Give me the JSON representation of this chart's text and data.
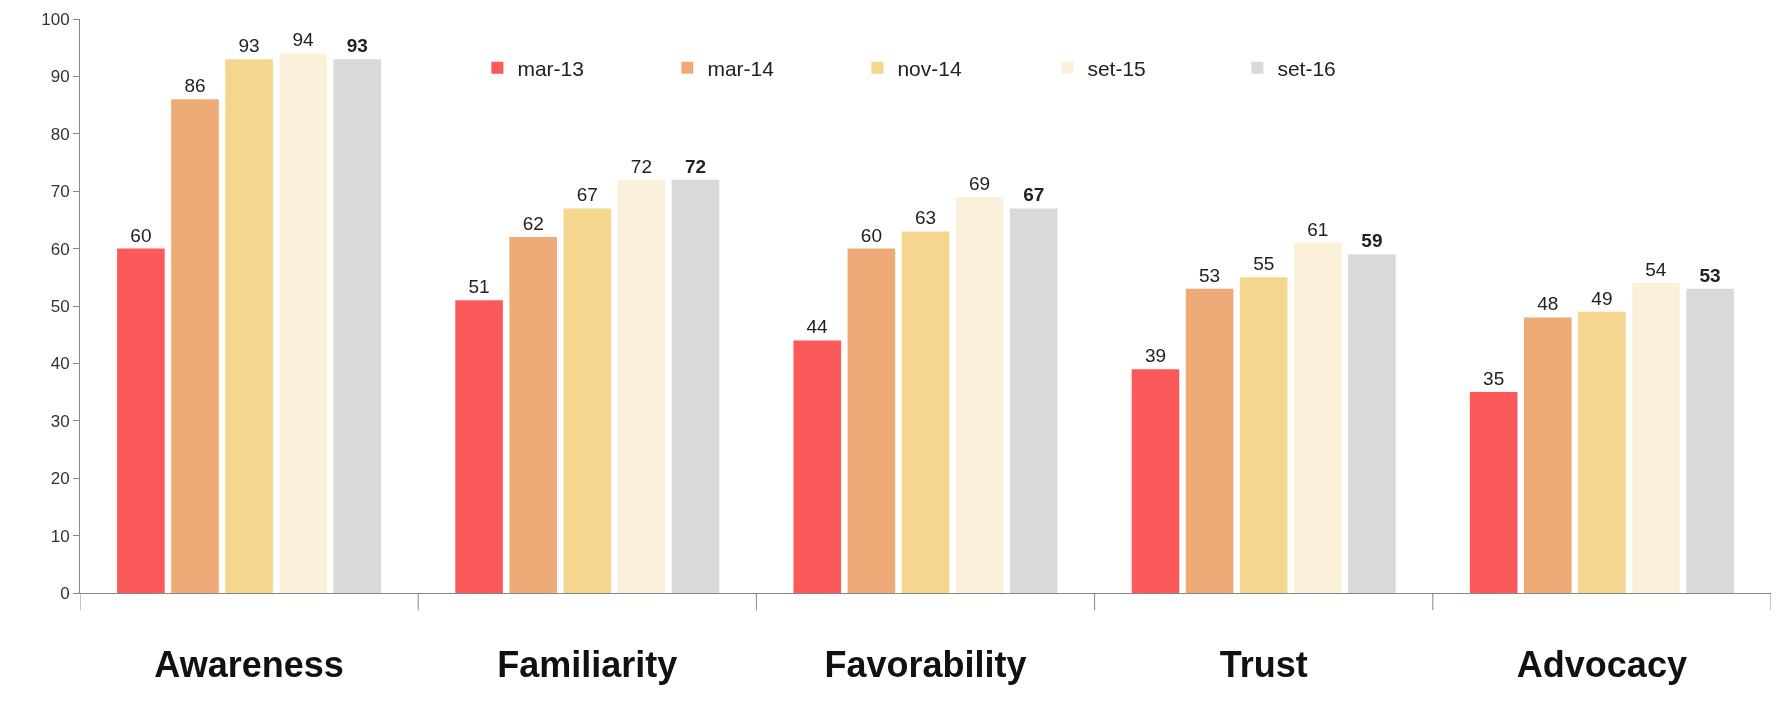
{
  "chart_data": {
    "type": "bar",
    "categories": [
      "Awareness",
      "Familiarity",
      "Favorability",
      "Trust",
      "Advocacy"
    ],
    "series": [
      {
        "name": "mar-13",
        "color": "#fc5a5a",
        "values": [
          60,
          51,
          44,
          39,
          35
        ]
      },
      {
        "name": "mar-14",
        "color": "#eeaa77",
        "values": [
          86,
          62,
          60,
          53,
          48
        ]
      },
      {
        "name": "nov-14",
        "color": "#f5d68e",
        "values": [
          93,
          67,
          63,
          55,
          49
        ]
      },
      {
        "name": "set-15",
        "color": "#fbf0d9",
        "values": [
          94,
          72,
          69,
          61,
          54
        ]
      },
      {
        "name": "set-16",
        "color": "#d9d9d9",
        "values": [
          93,
          72,
          67,
          59,
          53
        ]
      }
    ],
    "ylim": [
      0,
      100
    ],
    "yticks": [
      0,
      10,
      20,
      30,
      40,
      50,
      60,
      70,
      80,
      90,
      100
    ],
    "data_labels": true,
    "legend": "top"
  }
}
